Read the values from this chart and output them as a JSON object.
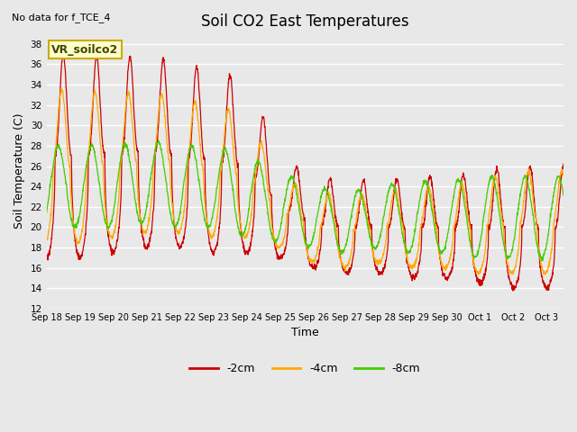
{
  "title": "Soil CO2 East Temperatures",
  "xlabel": "Time",
  "ylabel": "Soil Temperature (C)",
  "ylim": [
    12,
    39
  ],
  "yticks": [
    12,
    14,
    16,
    18,
    20,
    22,
    24,
    26,
    28,
    30,
    32,
    34,
    36,
    38
  ],
  "no_data_text": "No data for f_TCE_4",
  "legend_label": "VR_soilco2",
  "line_colors": {
    "2cm": "#cc0000",
    "4cm": "#ffaa00",
    "8cm": "#44cc00"
  },
  "legend_entries": [
    "-2cm",
    "-4cm",
    "-8cm"
  ],
  "bg_color": "#e8e8e8",
  "x_tick_labels": [
    "Sep 18",
    "Sep 19",
    "Sep 20",
    "Sep 21",
    "Sep 22",
    "Sep 23",
    "Sep 24",
    "Sep 25",
    "Sep 26",
    "Sep 27",
    "Sep 28",
    "Sep 29",
    "Sep 30",
    "Oct 1",
    "Oct 2",
    "Oct 3"
  ],
  "grid_color": "#ffffff",
  "title_fontsize": 12,
  "tick_fontsize": 7,
  "axis_fontsize": 9
}
